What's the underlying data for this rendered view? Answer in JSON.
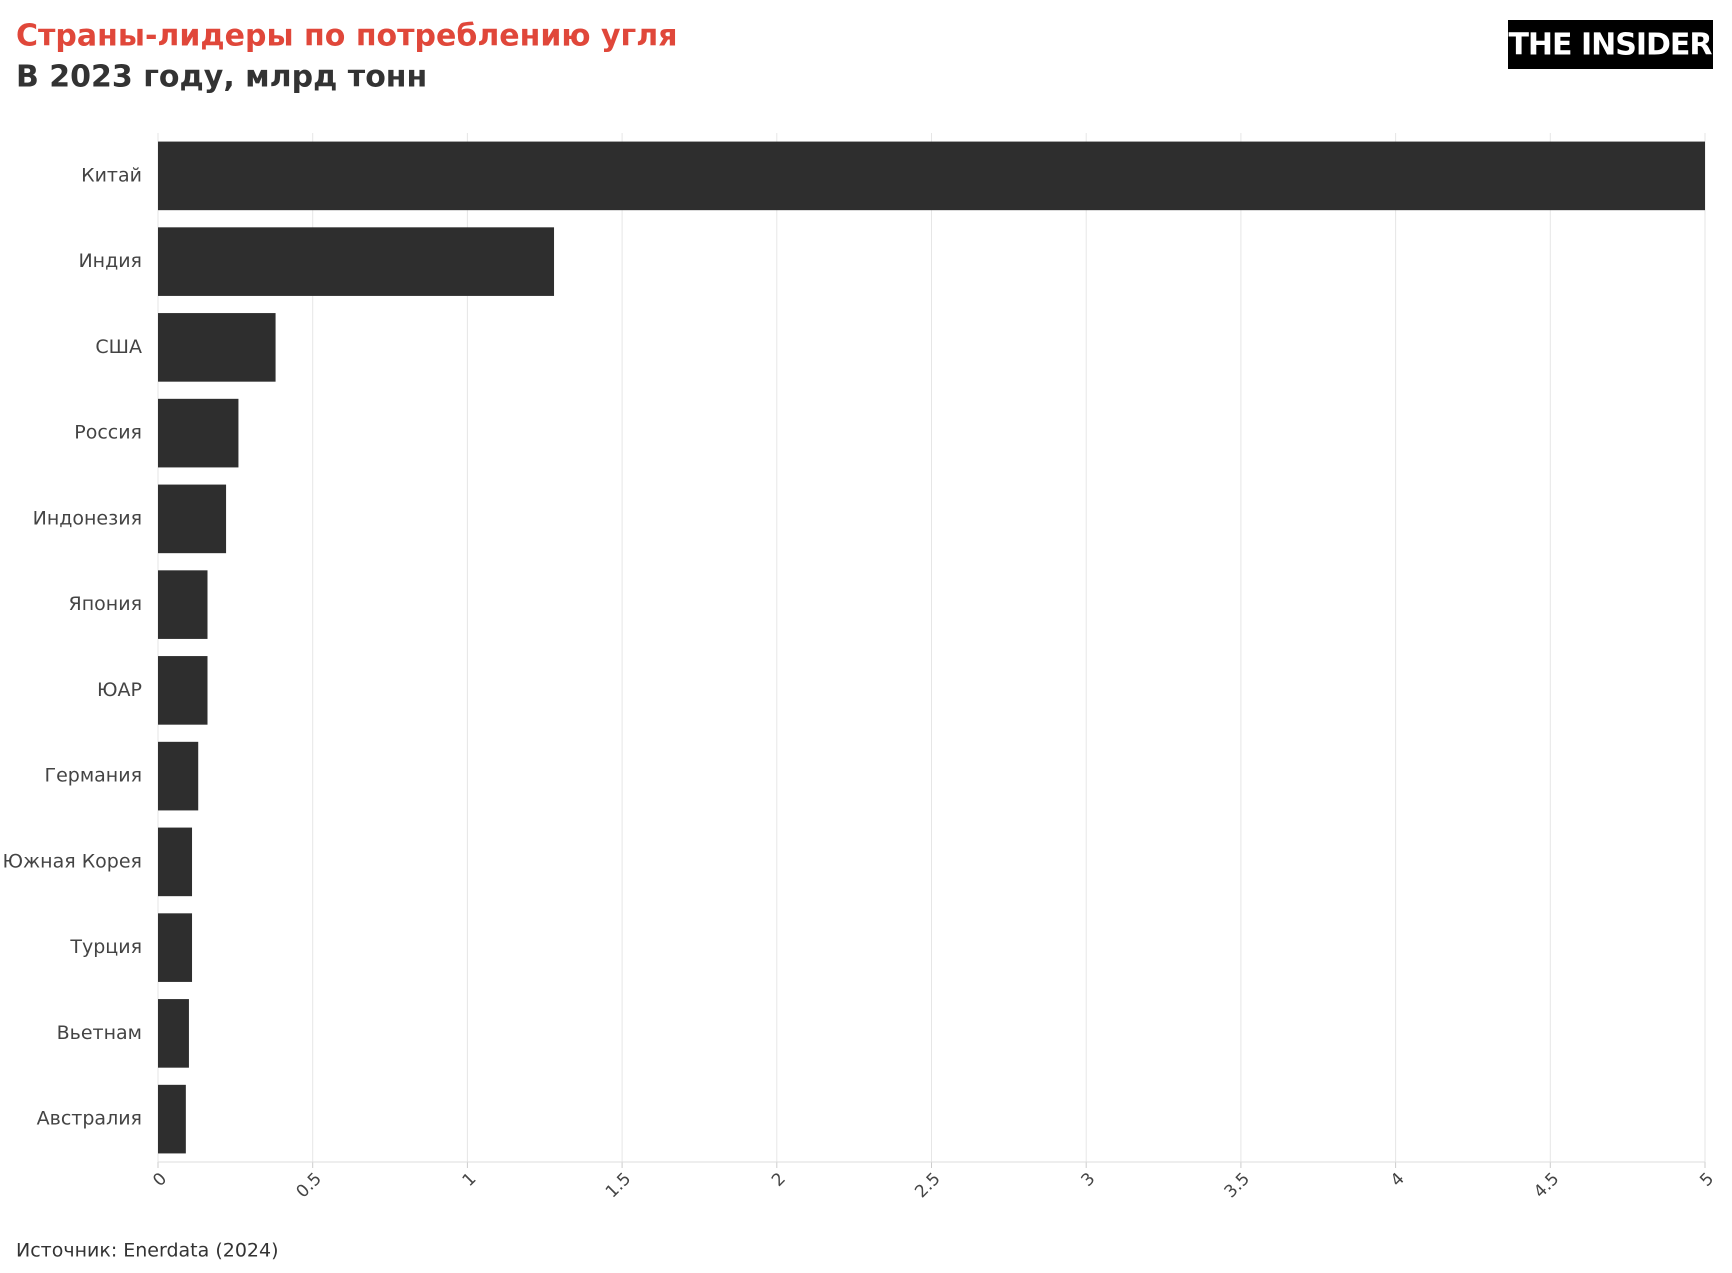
{
  "chart_data": {
    "type": "hbar",
    "title": "Страны-лидеры по потреблению угля",
    "subtitle": "В 2023 году, млрд тонн",
    "logo": "THE INSIDER",
    "source": "Источник: Enerdata (2024)",
    "categories": [
      "Китай",
      "Индия",
      "США",
      "Россия",
      "Индонезия",
      "Япония",
      "ЮАР",
      "Германия",
      "Южная Корея",
      "Турция",
      "Вьетнам",
      "Австралия"
    ],
    "values": [
      5.0,
      1.28,
      0.38,
      0.26,
      0.22,
      0.16,
      0.16,
      0.13,
      0.11,
      0.11,
      0.1,
      0.09
    ],
    "color": "#2e2e2e",
    "xlim": [
      0,
      5
    ],
    "xticks": [
      0,
      0.5,
      1,
      1.5,
      2,
      2.5,
      3,
      3.5,
      4,
      4.5,
      5
    ],
    "grid": true
  }
}
